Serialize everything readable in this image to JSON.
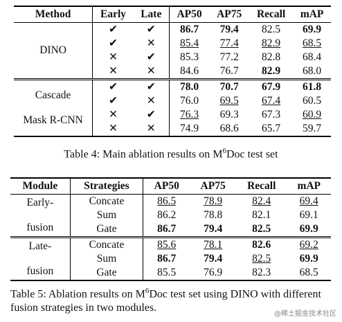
{
  "table4": {
    "header": [
      "Method",
      "Early",
      "Late",
      "AP50",
      "AP75",
      "Recall",
      "mAP"
    ],
    "groups": [
      {
        "method": [
          "DINO"
        ],
        "rows": [
          {
            "early": "✔",
            "late": "✔",
            "values": [
              "86.7",
              "79.4",
              "82.5",
              "69.9"
            ],
            "bold": [
              0,
              1,
              3
            ],
            "underline": []
          },
          {
            "early": "✔",
            "late": "✕",
            "values": [
              "85.4",
              "77.4",
              "82.9",
              "68.5"
            ],
            "bold": [],
            "underline": [
              0,
              1,
              2,
              3
            ]
          },
          {
            "early": "✕",
            "late": "✔",
            "values": [
              "85.3",
              "77.2",
              "82.8",
              "68.4"
            ],
            "bold": [],
            "underline": []
          },
          {
            "early": "✕",
            "late": "✕",
            "values": [
              "84.6",
              "76.7",
              "82.9",
              "68.0"
            ],
            "bold": [
              2
            ],
            "underline": []
          }
        ]
      },
      {
        "method": [
          "Cascade",
          "Mask R-CNN"
        ],
        "rows": [
          {
            "early": "✔",
            "late": "✔",
            "values": [
              "78.0",
              "70.7",
              "67.9",
              "61.8"
            ],
            "bold": [
              0,
              1,
              2,
              3
            ],
            "underline": []
          },
          {
            "early": "✔",
            "late": "✕",
            "values": [
              "76.0",
              "69.5",
              "67.4",
              "60.5"
            ],
            "bold": [],
            "underline": [
              1,
              2
            ]
          },
          {
            "early": "✕",
            "late": "✔",
            "values": [
              "76.3",
              "69.3",
              "67.3",
              "60.9"
            ],
            "bold": [],
            "underline": [
              0,
              3
            ]
          },
          {
            "early": "✕",
            "late": "✕",
            "values": [
              "74.9",
              "68.6",
              "65.7",
              "59.7"
            ],
            "bold": [],
            "underline": []
          }
        ]
      }
    ],
    "caption": [
      "Table 4: Main ablation results on M",
      "6",
      "Doc test set"
    ]
  },
  "table5": {
    "header": [
      "Module",
      "Strategies",
      "AP50",
      "AP75",
      "Recall",
      "mAP"
    ],
    "groups": [
      {
        "module": [
          "Early-",
          "fusion"
        ],
        "rows": [
          {
            "strategy": "Concate",
            "values": [
              "86.5",
              "78.9",
              "82.4",
              "69.4"
            ],
            "bold": [],
            "underline": [
              0,
              1,
              2,
              3
            ]
          },
          {
            "strategy": "Sum",
            "values": [
              "86.2",
              "78.8",
              "82.1",
              "69.1"
            ],
            "bold": [],
            "underline": []
          },
          {
            "strategy": "Gate",
            "values": [
              "86.7",
              "79.4",
              "82.5",
              "69.9"
            ],
            "bold": [
              0,
              1,
              2,
              3
            ],
            "underline": []
          }
        ]
      },
      {
        "module": [
          "Late-",
          "fusion"
        ],
        "rows": [
          {
            "strategy": "Concate",
            "values": [
              "85.6",
              "78.1",
              "82.6",
              "69.2"
            ],
            "bold": [
              2
            ],
            "underline": [
              0,
              1,
              3
            ]
          },
          {
            "strategy": "Sum",
            "values": [
              "86.7",
              "79.4",
              "82.5",
              "69.9"
            ],
            "bold": [
              0,
              1,
              3
            ],
            "underline": [
              2
            ]
          },
          {
            "strategy": "Gate",
            "values": [
              "85.5",
              "76.9",
              "82.3",
              "68.5"
            ],
            "bold": [],
            "underline": []
          }
        ]
      }
    ],
    "caption": [
      "Table 5: Ablation results on M",
      "6",
      "Doc test set using DINO with different fusion strategies in two modules."
    ]
  },
  "watermark": "@稀土掘金技术社区"
}
